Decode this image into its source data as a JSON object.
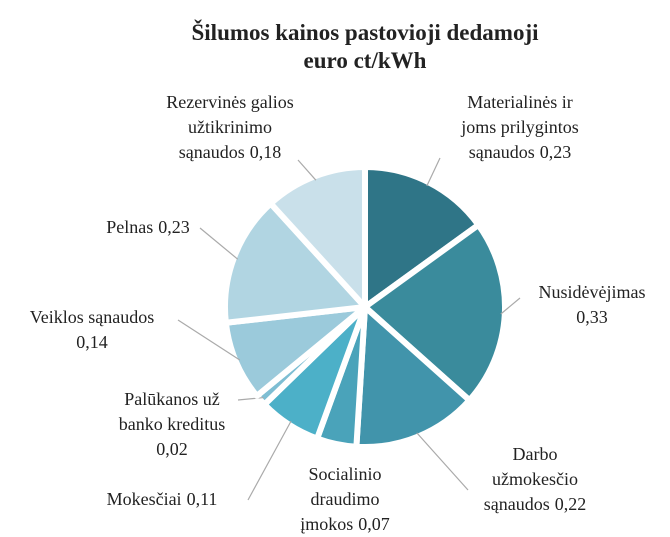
{
  "chart_data": {
    "type": "pie",
    "title": [
      "Šilumos kainos pastovioji dedamoji",
      "euro ct/kWh"
    ],
    "categories": [
      [
        "Materialinės ir",
        "joms prilygintos",
        "sąnaudos"
      ],
      [
        "Nusidėvėjimas"
      ],
      [
        "Darbo",
        "užmokesčio",
        "sąnaudos"
      ],
      [
        "Socialinio",
        "draudimo",
        "įmokos"
      ],
      [
        "Mokesčiai"
      ],
      [
        "Palūkanos už",
        "banko kreditus"
      ],
      [
        "Veiklos sąnaudos"
      ],
      [
        "Pelnas"
      ],
      [
        "Rezervinės galios",
        "užtikrinimo",
        "sąnaudos"
      ]
    ],
    "values": [
      0.23,
      0.33,
      0.22,
      0.07,
      0.11,
      0.02,
      0.14,
      0.23,
      0.18
    ],
    "value_labels": [
      "0,23",
      "0,33",
      "0,22",
      "0,07",
      "0,11",
      "0,02",
      "0,14",
      "0,23",
      "0,18"
    ],
    "colors": [
      "#2f7587",
      "#3a8b9c",
      "#4194ab",
      "#4aa3ba",
      "#4cb0c8",
      "#7ebed3",
      "#9bcadb",
      "#b1d5e2",
      "#c9e0ea"
    ]
  }
}
